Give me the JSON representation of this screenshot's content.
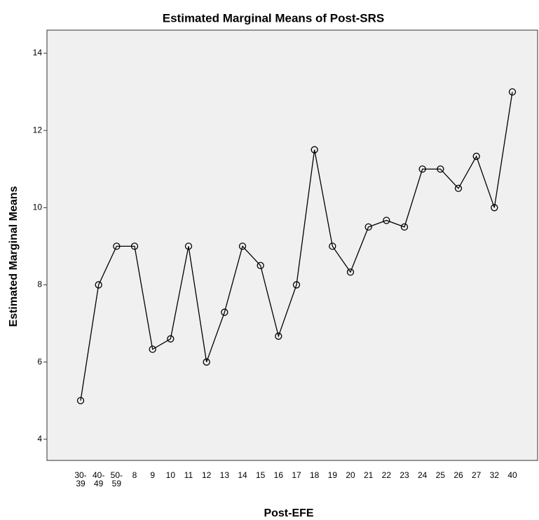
{
  "chart_data": {
    "type": "line",
    "title": "Estimated Marginal Means of Post-SRS",
    "x_label": "Post-EFE",
    "y_label": "Estimated Marginal Means",
    "categories": [
      "30-39",
      "40-49",
      "50-59",
      "8",
      "9",
      "10",
      "11",
      "12",
      "13",
      "14",
      "15",
      "16",
      "17",
      "18",
      "19",
      "20",
      "21",
      "22",
      "23",
      "24",
      "25",
      "26",
      "27",
      "32",
      "40"
    ],
    "values": [
      5,
      8,
      9,
      9,
      6.33,
      6.6,
      9,
      6,
      7.29,
      9,
      8.5,
      6.67,
      8,
      11.5,
      9,
      8.33,
      9.5,
      9.67,
      9.5,
      11,
      11,
      10.5,
      11.33,
      10,
      13
    ],
    "color": "#000000",
    "ylim": [
      3.45,
      14.6
    ],
    "yticks": [
      4,
      6,
      8,
      10,
      12,
      14
    ],
    "grid": false
  }
}
